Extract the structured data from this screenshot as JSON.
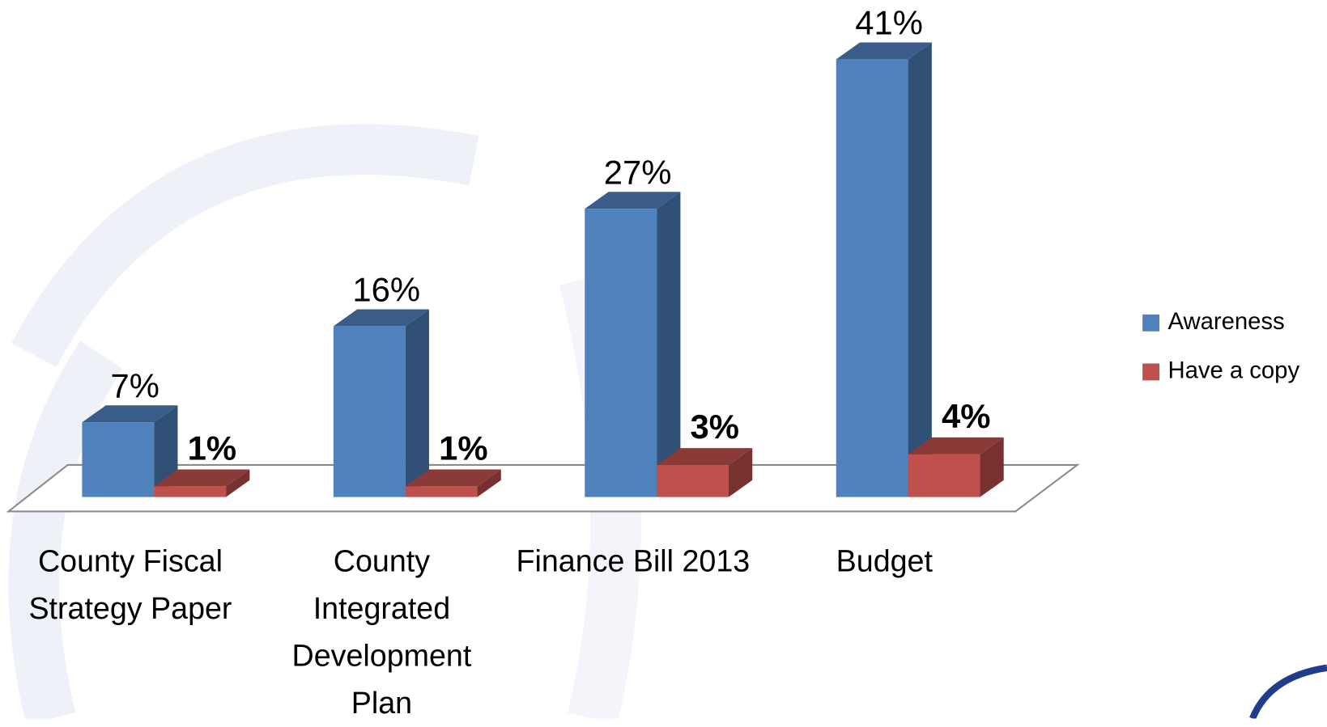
{
  "chart_data": {
    "type": "bar3d",
    "categories": [
      "County Fiscal Strategy Paper",
      "County Integrated Development Plan",
      "Finance Bill 2013",
      "Budget"
    ],
    "series": [
      {
        "name": "Awareness",
        "color": "#4f81bd",
        "values": [
          7,
          16,
          27,
          41
        ],
        "value_labels": [
          "7%",
          "16%",
          "27%",
          "41%"
        ]
      },
      {
        "name": "Have a copy",
        "color": "#c0504d",
        "values": [
          1,
          1,
          3,
          4
        ],
        "value_labels": [
          "1%",
          "1%",
          "3%",
          "4%"
        ]
      }
    ],
    "legend": "right"
  }
}
